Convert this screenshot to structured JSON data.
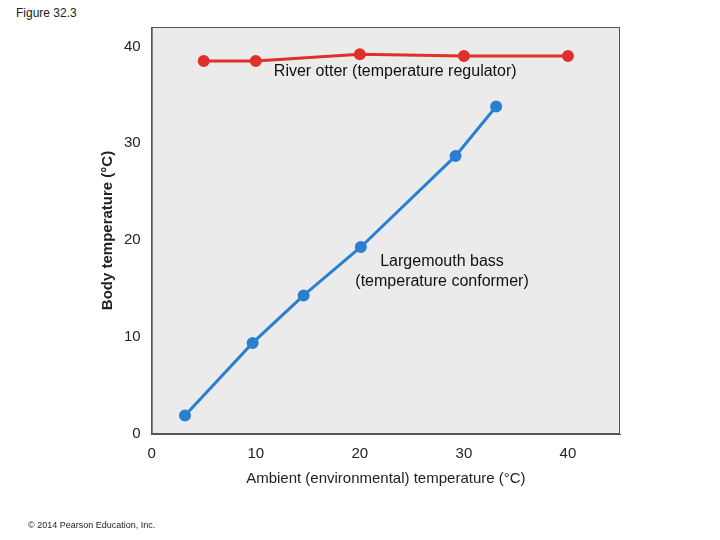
{
  "chart_data": {
    "type": "line",
    "title": "Figure 32.3",
    "footnote": "© 2014 Pearson Education, Inc.",
    "x_label": "Ambient (environmental) temperature (°C)",
    "y_label": "Body temperature (°C)",
    "series": [
      {
        "name": "River otter (temperature regulator)",
        "color": "#e0302a",
        "marker": "circle",
        "x": [
          5,
          10,
          20,
          30,
          40
        ],
        "values": [
          38.5,
          38.5,
          39.2,
          39,
          39
        ]
      },
      {
        "name": "Largemouth bass (temperature conformer)",
        "color": "#2a7fd0",
        "marker": "circle",
        "x": [
          3.2,
          9.7,
          14.6,
          20.1,
          29.2,
          33.1
        ],
        "values": [
          1.9,
          9.4,
          14.3,
          19.3,
          28.7,
          33.8
        ]
      }
    ],
    "xlim": [
      0,
      45
    ],
    "xticks": [
      0,
      10,
      20,
      30,
      40
    ],
    "ylim": [
      0,
      42
    ],
    "yticks": [
      0,
      10,
      20,
      30,
      40
    ],
    "grid": false
  }
}
